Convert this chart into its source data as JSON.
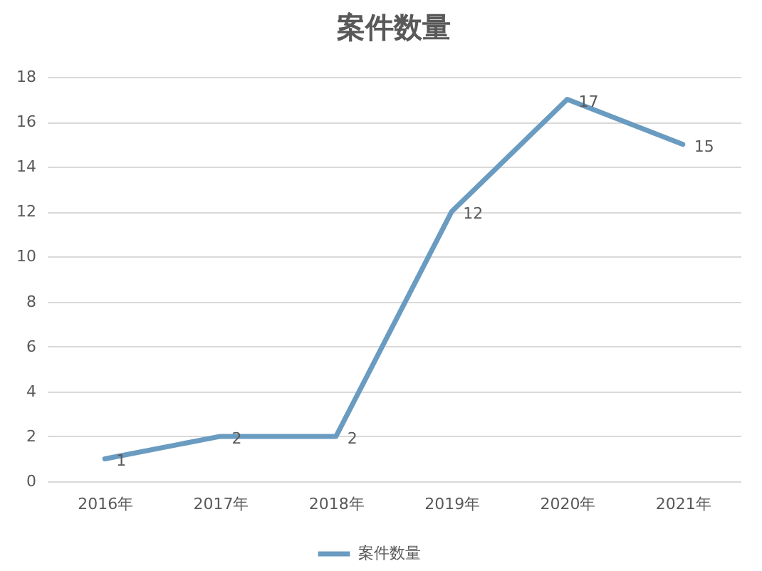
{
  "chart_data": {
    "type": "line",
    "title": "案件数量",
    "categories": [
      "2016年",
      "2017年",
      "2018年",
      "2019年",
      "2020年",
      "2021年"
    ],
    "series": [
      {
        "name": "案件数量",
        "color": "#6a9bc0",
        "values": [
          1,
          2,
          2,
          12,
          17,
          15
        ]
      }
    ],
    "ylim": [
      0,
      18
    ],
    "yticks": [
      0,
      2,
      4,
      6,
      8,
      10,
      12,
      14,
      16,
      18
    ],
    "grid": "y",
    "legend": "bottom",
    "data_labels": true
  }
}
